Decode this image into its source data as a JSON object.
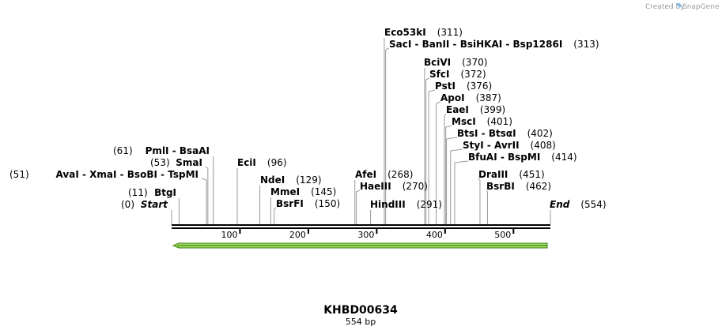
{
  "credit": {
    "text": "Created by",
    "brand": "SnapGene"
  },
  "map": {
    "name": "KHBD00634",
    "length_label": "554 bp",
    "length": 554,
    "ticks": [
      "100",
      "200",
      "300",
      "400",
      "500"
    ],
    "colors": {
      "backbone": "#000000",
      "feature_fill": "#a0e060",
      "feature_stroke": "#3a7d10"
    }
  },
  "sites": [
    {
      "row": 0,
      "pos": 311,
      "line_bp": 311,
      "label_text": "Eco53kI",
      "pos_text": "(311)"
    },
    {
      "row": 1,
      "pos": 313,
      "line_bp": 313,
      "label_text": "SacI  - BanII  - BsiHKAI  - Bsp1286I",
      "pos_text": "(313)"
    },
    {
      "row": 2,
      "pos": 370,
      "line_bp": 370,
      "label_text": "BciVI",
      "pos_text": "(370)"
    },
    {
      "row": 3,
      "pos": 372,
      "line_bp": 372,
      "label_text": "SfcI",
      "pos_text": "(372)"
    },
    {
      "row": 4,
      "pos": 376,
      "line_bp": 376,
      "label_text": "PstI",
      "pos_text": "(376)"
    },
    {
      "row": 5,
      "pos": 387,
      "line_bp": 387,
      "label_text": "ApoI",
      "pos_text": "(387)"
    },
    {
      "row": 6,
      "pos": 399,
      "line_bp": 399,
      "label_text": "EaeI",
      "pos_text": "(399)"
    },
    {
      "row": 7,
      "pos": 401,
      "line_bp": 401,
      "label_text": "MscI",
      "pos_text": "(401)"
    },
    {
      "row": 8,
      "pos": 402,
      "line_bp": 402,
      "label_text": "BtsI  - BtsαI",
      "pos_text": "(402)"
    },
    {
      "row": 9,
      "pos": 408,
      "line_bp": 408,
      "label_text": "StyI  - AvrII",
      "pos_text": "(408)"
    },
    {
      "row": 10,
      "pos": 414,
      "line_bp": 414,
      "label_text": "BfuAI  - BspMI",
      "pos_text": "(414)"
    },
    {
      "row": 11,
      "pos": 451,
      "line_bp": 451,
      "label_text": "DraIII",
      "pos_text": "(451)"
    },
    {
      "row": 12,
      "pos": 462,
      "line_bp": 462,
      "label_text": "BsrBI",
      "pos_text": "(462)"
    },
    {
      "row": 13,
      "pos": 61,
      "line_bp": 61,
      "label_text": "PmlI  - BsaAI",
      "pos_text": "(61)",
      "side": "left"
    },
    {
      "row": 14,
      "pos": 53,
      "line_bp": 53,
      "label_text": "SmaI",
      "pos_text": "(53)",
      "side": "left"
    },
    {
      "row": 15,
      "pos": 96,
      "line_bp": 96,
      "label_text": "EciI",
      "pos_text": "(96)"
    },
    {
      "row": 16,
      "pos": 51,
      "line_bp": 51,
      "label_text": "AvaI  - XmaI  - BsoBI  - TspMI",
      "pos_text": "(51)",
      "side": "left"
    },
    {
      "row": 17,
      "pos": 268,
      "line_bp": 268,
      "label_text": "AfeI",
      "pos_text": "(268)"
    },
    {
      "row": 18,
      "pos": 129,
      "line_bp": 129,
      "label_text": "NdeI",
      "pos_text": "(129)"
    },
    {
      "row": 19,
      "pos": 270,
      "line_bp": 270,
      "label_text": "HaeIII",
      "pos_text": "(270)"
    },
    {
      "row": 20,
      "pos": 11,
      "line_bp": 11,
      "label_text": "BtgI",
      "pos_text": "(11)",
      "side": "left"
    },
    {
      "row": 21,
      "pos": 145,
      "line_bp": 145,
      "label_text": "MmeI",
      "pos_text": "(145)"
    },
    {
      "row": 22,
      "pos": 0,
      "line_bp": 0,
      "label_text": "Start",
      "pos_text": "(0)",
      "side": "left",
      "italic": true
    },
    {
      "row": 23,
      "pos": 150,
      "line_bp": 150,
      "label_text": "BsrFI",
      "pos_text": "(150)"
    },
    {
      "row": 24,
      "pos": 291,
      "line_bp": 291,
      "label_text": "HindIII",
      "pos_text": "(291)"
    },
    {
      "row": 25,
      "pos": 554,
      "line_bp": 554,
      "label_text": "End",
      "pos_text": "(554)",
      "italic": true
    }
  ]
}
